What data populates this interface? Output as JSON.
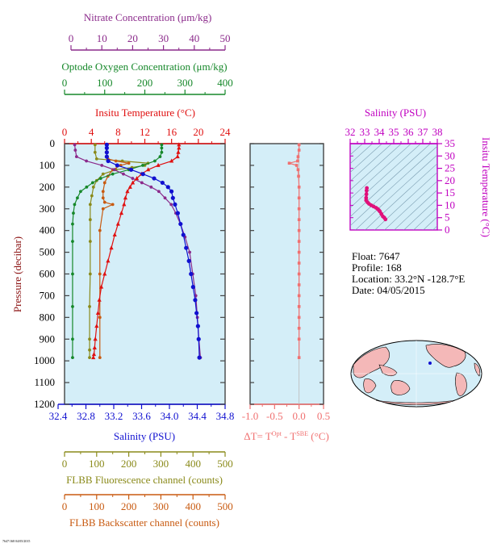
{
  "colors": {
    "nitrate": "#8b2a8b",
    "oxygen": "#16882a",
    "temperature": "#e01010",
    "salinity": "#1010d0",
    "fluorescence": "#8a8a1a",
    "backscatter": "#c85a10",
    "dt": "#f07070",
    "ts_axis": "#c000c0",
    "panel_bg": "#d4eef8"
  },
  "axes": {
    "nitrate": {
      "title": "Nitrate Concentration (μm/kg)",
      "ticks": [
        "0",
        "10",
        "20",
        "30",
        "40",
        "50"
      ]
    },
    "oxygen": {
      "title": "Optode Oxygen Concentration (μm/kg)",
      "ticks": [
        "0",
        "100",
        "200",
        "300",
        "400"
      ]
    },
    "temperature": {
      "title": "Insitu Temperature (°C)",
      "ticks": [
        "0",
        "4",
        "8",
        "12",
        "16",
        "20",
        "24"
      ]
    },
    "salinity": {
      "title": "Salinity (PSU)",
      "ticks": [
        "32.4",
        "32.8",
        "33.2",
        "33.6",
        "34.0",
        "34.4",
        "34.8"
      ]
    },
    "fluorescence": {
      "title": "FLBB Fluorescence channel (counts)",
      "ticks": [
        "0",
        "100",
        "200",
        "300",
        "400",
        "500"
      ]
    },
    "backscatter": {
      "title": "FLBB Backscatter channel (counts)",
      "ticks": [
        "0",
        "100",
        "200",
        "300",
        "400",
        "500"
      ]
    },
    "pressure": {
      "title": "Pressure (decibar)",
      "ticks": [
        "0",
        "100",
        "200",
        "300",
        "400",
        "500",
        "600",
        "700",
        "800",
        "900",
        "1000",
        "1100",
        "1200"
      ]
    },
    "dt": {
      "title": "ΔT= T",
      "sup1": "Opt",
      "mid": " - T",
      "sup2": "SBE",
      "unit": " (°C)",
      "ticks": [
        "-1.0",
        "-0.5",
        "0.0",
        "0.5"
      ]
    },
    "ts_salinity": {
      "title": "Salinity (PSU)",
      "ticks": [
        "32",
        "33",
        "34",
        "35",
        "36",
        "37",
        "38"
      ]
    },
    "ts_temperature": {
      "title": "Insitu Temperature (°C)",
      "ticks": [
        "0",
        "5",
        "10",
        "15",
        "20",
        "25",
        "30",
        "35"
      ]
    }
  },
  "info": {
    "float": "Float:  7647",
    "profile": "Profile:  168",
    "location": "Location:  33.2°N  -128.7°E",
    "date": "Date:  04/05/2015"
  },
  "footer": "7647/168 04/05/2015",
  "chart_data": [
    {
      "type": "line",
      "title": "Nitrate Concentration (μm/kg)",
      "xlim": [
        0,
        50
      ],
      "ylim": [
        1200,
        0
      ],
      "series": [
        {
          "name": "Nitrate",
          "x": [
            1.2,
            1.4,
            1.8,
            5,
            10,
            14,
            17,
            20,
            23,
            26,
            28.5,
            30.5,
            32.5,
            34,
            35.5,
            37,
            38.5,
            39.5,
            40.5,
            41,
            41.5,
            42
          ],
          "y": [
            5,
            30,
            60,
            80,
            100,
            120,
            140,
            160,
            180,
            200,
            220,
            250,
            280,
            320,
            370,
            430,
            500,
            600,
            700,
            800,
            900,
            985
          ]
        }
      ]
    },
    {
      "type": "line",
      "title": "Optode Oxygen Concentration (μm/kg)",
      "xlim": [
        0,
        400
      ],
      "ylim": [
        1200,
        0
      ],
      "series": [
        {
          "name": "Oxygen",
          "x": [
            242,
            242,
            242,
            238,
            225,
            195,
            160,
            120,
            90,
            70,
            55,
            40,
            32,
            25,
            22,
            20,
            20,
            20,
            20,
            20,
            20
          ],
          "y": [
            5,
            20,
            40,
            60,
            80,
            100,
            120,
            140,
            160,
            180,
            200,
            220,
            250,
            280,
            320,
            370,
            450,
            600,
            750,
            900,
            985
          ]
        }
      ]
    },
    {
      "type": "line",
      "title": "Insitu Temperature (°C)",
      "xlim": [
        0,
        24
      ],
      "ylim": [
        1200,
        0
      ],
      "series": [
        {
          "name": "Temperature",
          "x": [
            17.1,
            17.1,
            17.0,
            16.9,
            16.0,
            14.0,
            12.5,
            11.5,
            10.8,
            10.2,
            9.8,
            9.4,
            9.1,
            8.9,
            8.5,
            8.0,
            7.5,
            7.0,
            6.5,
            6.0,
            5.5,
            5.2,
            5.0,
            4.8,
            4.6,
            4.5,
            4.4,
            4.3
          ],
          "y": [
            5,
            20,
            40,
            60,
            80,
            100,
            120,
            140,
            160,
            180,
            200,
            220,
            250,
            280,
            320,
            370,
            420,
            480,
            540,
            600,
            660,
            720,
            780,
            840,
            900,
            940,
            970,
            985
          ]
        }
      ]
    },
    {
      "type": "line",
      "title": "Salinity (PSU)",
      "xlim": [
        32.4,
        34.8
      ],
      "ylim": [
        1200,
        0
      ],
      "series": [
        {
          "name": "Salinity",
          "x": [
            33.1,
            33.1,
            33.1,
            33.1,
            33.12,
            33.25,
            33.45,
            33.62,
            33.78,
            33.9,
            33.98,
            34.03,
            34.05,
            34.08,
            34.12,
            34.16,
            34.2,
            34.24,
            34.28,
            34.31,
            34.34,
            34.37,
            34.39,
            34.41,
            34.42,
            34.43
          ],
          "y": [
            5,
            20,
            40,
            60,
            80,
            100,
            120,
            140,
            160,
            180,
            200,
            220,
            250,
            280,
            320,
            370,
            420,
            480,
            540,
            600,
            660,
            720,
            780,
            840,
            900,
            985
          ]
        }
      ]
    },
    {
      "type": "line",
      "title": "FLBB Fluorescence channel (counts)",
      "xlim": [
        0,
        500
      ],
      "ylim": [
        1200,
        0
      ],
      "series": [
        {
          "name": "Fluorescence",
          "x": [
            95,
            95,
            100,
            180,
            260,
            250,
            210,
            160,
            120,
            100,
            90,
            85,
            80,
            80,
            80,
            80,
            78,
            78,
            78,
            78
          ],
          "y": [
            5,
            40,
            70,
            80,
            90,
            100,
            110,
            120,
            140,
            170,
            200,
            240,
            280,
            350,
            450,
            600,
            750,
            900,
            950,
            985
          ]
        }
      ]
    },
    {
      "type": "line",
      "title": "FLBB Backscatter channel (counts)",
      "xlim": [
        0,
        500
      ],
      "ylim": [
        1200,
        0
      ],
      "series": [
        {
          "name": "Backscatter",
          "x": [
            130,
            130,
            135,
            160,
            200,
            175,
            150,
            135,
            125,
            120,
            120,
            125,
            150,
            120,
            110,
            110,
            110,
            110
          ],
          "y": [
            5,
            40,
            70,
            80,
            90,
            100,
            120,
            150,
            180,
            220,
            250,
            270,
            280,
            300,
            400,
            600,
            800,
            985
          ]
        }
      ]
    },
    {
      "type": "line",
      "title": "ΔT= T Opt - T SBE (°C)",
      "xlim": [
        -1.0,
        0.5
      ],
      "ylim": [
        1200,
        0
      ],
      "series": [
        {
          "name": "Delta T",
          "x": [
            0.0,
            0.0,
            -0.02,
            -0.03,
            -0.2,
            -0.05,
            -0.02,
            -0.01,
            0.0,
            0.0,
            0.0,
            0.0,
            0.0,
            0.0,
            0.0,
            0.0,
            0.0,
            0.0,
            0.0,
            0.0,
            0.0,
            0.0,
            0.0,
            0.0
          ],
          "y": [
            5,
            30,
            60,
            80,
            90,
            100,
            120,
            150,
            200,
            250,
            300,
            350,
            400,
            450,
            500,
            550,
            600,
            650,
            700,
            750,
            800,
            850,
            900,
            985
          ]
        }
      ]
    },
    {
      "type": "scatter",
      "title": "Salinity (PSU) vs Insitu Temperature (°C)",
      "xlim": [
        32,
        38
      ],
      "ylim": [
        0,
        35
      ],
      "series": [
        {
          "name": "T-S",
          "x": [
            33.15,
            33.13,
            33.12,
            33.1,
            33.1,
            33.2,
            33.3,
            33.45,
            33.62,
            33.78,
            33.9,
            33.98,
            34.05,
            34.15,
            34.25,
            34.35,
            34.43
          ],
          "y": [
            17.0,
            16.0,
            14.5,
            13.0,
            12.0,
            11.2,
            10.6,
            10.0,
            9.5,
            9.0,
            8.5,
            8.0,
            7.5,
            6.5,
            5.5,
            5.0,
            4.3
          ]
        }
      ]
    }
  ]
}
